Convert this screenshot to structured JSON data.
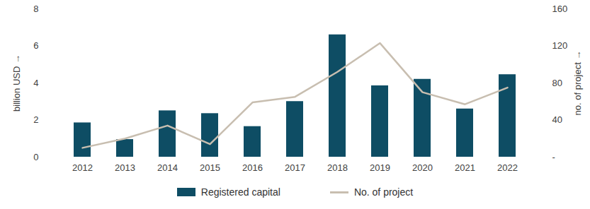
{
  "chart_data": {
    "type": "bar",
    "categories": [
      "2012",
      "2013",
      "2014",
      "2015",
      "2016",
      "2017",
      "2018",
      "2019",
      "2020",
      "2021",
      "2022"
    ],
    "series": [
      {
        "name": "Registered capital",
        "type": "bar",
        "color": "#0e4d64",
        "values": [
          1.85,
          0.95,
          2.5,
          2.35,
          1.65,
          3.0,
          6.6,
          3.85,
          4.2,
          2.6,
          4.45
        ]
      },
      {
        "name": "No. of project",
        "type": "line",
        "color": "#c8beb0",
        "axis": "y2",
        "values": [
          10,
          20,
          34,
          14,
          59,
          65,
          92,
          123,
          70,
          57,
          75
        ]
      }
    ],
    "ylabel": "billion USD",
    "y2label": "no. of project",
    "ylim": [
      0,
      8
    ],
    "yticks": [
      0,
      2,
      4,
      6,
      8
    ],
    "y2lim": [
      0,
      160
    ],
    "y2ticks": [
      {
        "value": 0,
        "label": "-"
      },
      40,
      80,
      120,
      160
    ],
    "grid": false,
    "legend": "bottom"
  }
}
